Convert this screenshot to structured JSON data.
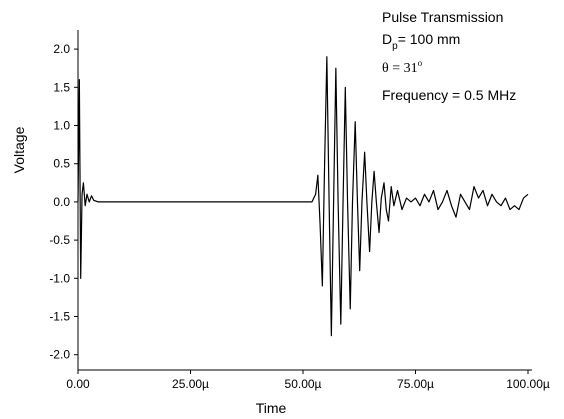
{
  "chart_data": {
    "type": "line",
    "xlabel": "Time",
    "ylabel": "Voltage",
    "annotations": {
      "title": "Pulse Transmission",
      "dp_main": "D",
      "dp_sub": "p",
      "dp_rest": "= 100 mm",
      "theta": "θ = 31",
      "theta_sup": "o",
      "freq": "Frequency = 0.5 MHz"
    },
    "xlim": [
      0,
      100
    ],
    "ylim": [
      -2.2,
      2.25
    ],
    "xticks": [
      {
        "value": 0,
        "label": "0.00"
      },
      {
        "value": 25,
        "label": "25.00µ"
      },
      {
        "value": 50,
        "label": "50.00µ"
      },
      {
        "value": 75,
        "label": "75.00µ"
      },
      {
        "value": 100,
        "label": "100.00µ"
      }
    ],
    "yticks": [
      {
        "value": 2,
        "label": "2.0"
      },
      1.5,
      {
        "value": 1,
        "label": "1.0"
      },
      0.5,
      {
        "value": 0,
        "label": "0.0"
      },
      -0.5,
      {
        "value": -1,
        "label": "-1.0"
      },
      -1.5,
      {
        "value": -2,
        "label": "-2.0"
      }
    ],
    "color": "#000000",
    "x": [
      0,
      0.3,
      0.6,
      0.9,
      1.2,
      1.6,
      2.0,
      2.5,
      3.0,
      3.5,
      4.5,
      6,
      10,
      20,
      30,
      40,
      50,
      52,
      52.8,
      53.3,
      53.8,
      54.3,
      54.8,
      55.3,
      55.8,
      56.3,
      56.8,
      57.3,
      57.8,
      58.4,
      58.9,
      59.4,
      59.9,
      60.5,
      61.0,
      61.6,
      62.1,
      62.6,
      63.1,
      63.7,
      64.2,
      64.8,
      65.3,
      65.8,
      66.3,
      66.9,
      67.4,
      68.0,
      68.5,
      69.0,
      69.6,
      70.2,
      71,
      72,
      73,
      74,
      75,
      76,
      77,
      78,
      79,
      80,
      81,
      82,
      83,
      84,
      85,
      86,
      87,
      88,
      89,
      90,
      91,
      92,
      93,
      94,
      95,
      96,
      97,
      98,
      99,
      100
    ],
    "values": [
      0,
      1.6,
      -1.0,
      0.1,
      0.25,
      -0.05,
      0.1,
      0.0,
      0.08,
      0.02,
      0.0,
      0.0,
      0.0,
      0.0,
      0.0,
      0.0,
      0.0,
      0.0,
      0.1,
      0.35,
      -0.3,
      -1.1,
      0.5,
      1.9,
      0.0,
      -1.75,
      0.0,
      1.75,
      0.0,
      -1.6,
      0.0,
      1.5,
      0.0,
      -1.4,
      0.0,
      1.05,
      0.0,
      -0.9,
      0.0,
      0.65,
      0.0,
      -0.65,
      0.0,
      0.4,
      0.0,
      -0.4,
      0.05,
      0.25,
      -0.1,
      -0.25,
      0.2,
      -0.05,
      0.15,
      -0.1,
      0.05,
      0.0,
      0.05,
      -0.05,
      0.1,
      0.0,
      0.15,
      -0.1,
      0.0,
      0.15,
      -0.05,
      -0.2,
      0.1,
      0.0,
      -0.1,
      0.2,
      0.05,
      0.15,
      -0.05,
      0.1,
      0.0,
      -0.05,
      0.05,
      -0.1,
      -0.05,
      -0.1,
      0.05,
      0.1
    ]
  }
}
